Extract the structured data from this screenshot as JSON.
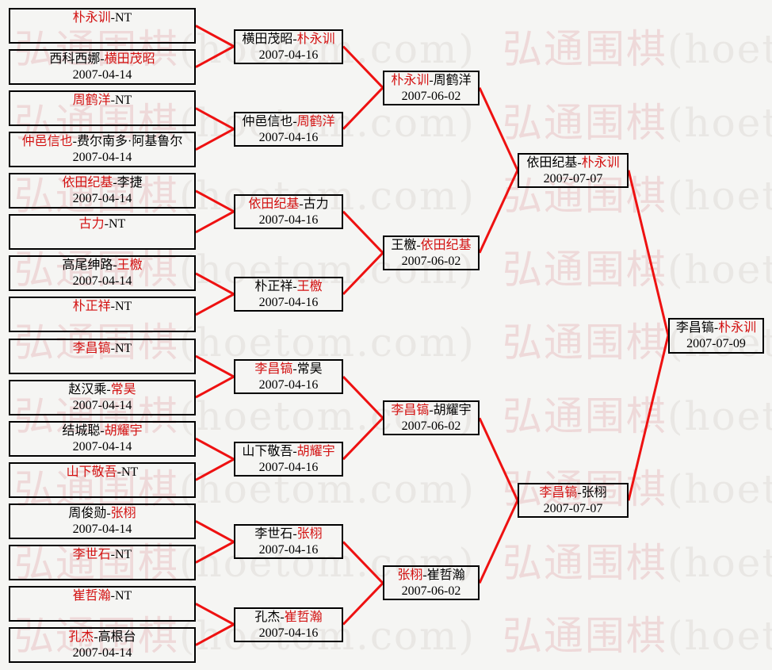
{
  "title": "2007 Go tournament knockout bracket",
  "separator": "-",
  "colors": {
    "background": "#f5f5f3",
    "line_red": "#ee1111",
    "winner_red": "#d31111",
    "loser_black": "#000000",
    "box_border": "#000000",
    "watermark_cn": "#eed9d9",
    "watermark_en": "#e9e7e4"
  },
  "watermark": {
    "cjk": "弘通围棋",
    "latin": "(hoetom.com)"
  },
  "rounds": [
    {
      "name": "round-of-32-remnant",
      "matches": [
        {
          "p1": "朴永训",
          "p2": "NT",
          "winner": 1,
          "date": ""
        },
        {
          "p1": "西科西娜",
          "p2": "横田茂昭",
          "winner": 2,
          "date": "2007-04-14"
        },
        {
          "p1": "周鹤洋",
          "p2": "NT",
          "winner": 1,
          "date": ""
        },
        {
          "p1": "仲邑信也",
          "p2": "费尔南多·阿基鲁尔",
          "winner": 1,
          "date": "2007-04-14"
        },
        {
          "p1": "依田纪基",
          "p2": "李捷",
          "winner": 1,
          "date": "2007-04-14"
        },
        {
          "p1": "古力",
          "p2": "NT",
          "winner": 1,
          "date": ""
        },
        {
          "p1": "高尾绅路",
          "p2": "王檄",
          "winner": 2,
          "date": "2007-04-14"
        },
        {
          "p1": "朴正祥",
          "p2": "NT",
          "winner": 1,
          "date": ""
        },
        {
          "p1": "李昌镐",
          "p2": "NT",
          "winner": 1,
          "date": ""
        },
        {
          "p1": "赵汉乘",
          "p2": "常昊",
          "winner": 2,
          "date": "2007-04-14"
        },
        {
          "p1": "结城聪",
          "p2": "胡耀宇",
          "winner": 2,
          "date": "2007-04-14"
        },
        {
          "p1": "山下敬吾",
          "p2": "NT",
          "winner": 1,
          "date": ""
        },
        {
          "p1": "周俊勋",
          "p2": "张栩",
          "winner": 2,
          "date": "2007-04-14"
        },
        {
          "p1": "李世石",
          "p2": "NT",
          "winner": 1,
          "date": ""
        },
        {
          "p1": "崔哲瀚",
          "p2": "NT",
          "winner": 1,
          "date": ""
        },
        {
          "p1": "孔杰",
          "p2": "高根台",
          "winner": 1,
          "date": "2007-04-14"
        }
      ]
    },
    {
      "name": "round-of-16",
      "matches": [
        {
          "p1": "横田茂昭",
          "p2": "朴永训",
          "winner": 2,
          "date": "2007-04-16"
        },
        {
          "p1": "仲邑信也",
          "p2": "周鹤洋",
          "winner": 2,
          "date": "2007-04-16"
        },
        {
          "p1": "依田纪基",
          "p2": "古力",
          "winner": 1,
          "date": "2007-04-16"
        },
        {
          "p1": "朴正祥",
          "p2": "王檄",
          "winner": 2,
          "date": "2007-04-16"
        },
        {
          "p1": "李昌镐",
          "p2": "常昊",
          "winner": 1,
          "date": "2007-04-16"
        },
        {
          "p1": "山下敬吾",
          "p2": "胡耀宇",
          "winner": 2,
          "date": "2007-04-16"
        },
        {
          "p1": "李世石",
          "p2": "张栩",
          "winner": 2,
          "date": "2007-04-16"
        },
        {
          "p1": "孔杰",
          "p2": "崔哲瀚",
          "winner": 2,
          "date": "2007-04-16"
        }
      ]
    },
    {
      "name": "quarterfinals",
      "matches": [
        {
          "p1": "朴永训",
          "p2": "周鹤洋",
          "winner": 1,
          "date": "2007-06-02"
        },
        {
          "p1": "王檄",
          "p2": "依田纪基",
          "winner": 2,
          "date": "2007-06-02"
        },
        {
          "p1": "李昌镐",
          "p2": "胡耀宇",
          "winner": 1,
          "date": "2007-06-02"
        },
        {
          "p1": "张栩",
          "p2": "崔哲瀚",
          "winner": 1,
          "date": "2007-06-02"
        }
      ]
    },
    {
      "name": "semifinals",
      "matches": [
        {
          "p1": "依田纪基",
          "p2": "朴永训",
          "winner": 2,
          "date": "2007-07-07"
        },
        {
          "p1": "李昌镐",
          "p2": "张栩",
          "winner": 1,
          "date": "2007-07-07"
        }
      ]
    },
    {
      "name": "final",
      "matches": [
        {
          "p1": "李昌镐",
          "p2": "朴永训",
          "winner": 2,
          "date": "2007-07-09"
        }
      ]
    }
  ]
}
